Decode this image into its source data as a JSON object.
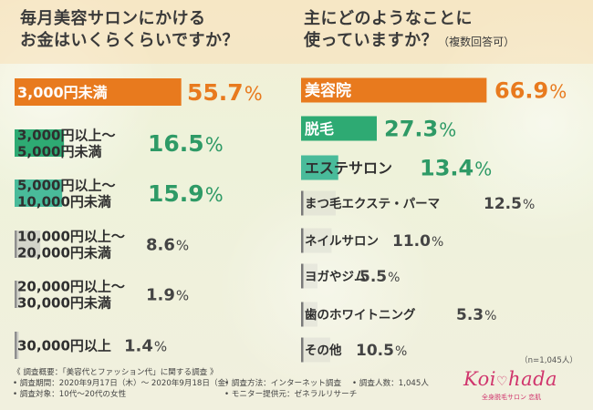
{
  "left_question": {
    "line1": "毎月美容サロンにかける",
    "line2": "お金はいくらくらいですか？"
  },
  "right_question": {
    "line1": "主にどのようなことに",
    "line2": "使っていますか？",
    "note": "（複数回答可）"
  },
  "chart_data": [
    {
      "type": "bar",
      "orientation": "horizontal",
      "title": "毎月美容サロンにかけるお金はいくらくらいですか？",
      "categories": [
        "3,000円未満",
        "3,000円以上～5,000円未満",
        "5,000円以上～10,000円未満",
        "10,000円以上～20,000円未満",
        "20,000円以上～30,000円未満",
        "30,000円以上"
      ],
      "category_lines": [
        [
          "3,000円未満"
        ],
        [
          "3,000円以上～",
          "5,000円未満"
        ],
        [
          "5,000円以上～",
          "10,000円未満"
        ],
        [
          "10,000円以上～",
          "20,000円未満"
        ],
        [
          "20,000円以上～",
          "30,000円未満"
        ],
        [
          "30,000円以上"
        ]
      ],
      "values": [
        55.7,
        16.5,
        15.9,
        8.6,
        1.9,
        1.4
      ],
      "value_labels": [
        [
          "55.",
          "7",
          "%"
        ],
        [
          "16.",
          "5",
          "%"
        ],
        [
          "15.",
          "9",
          "%"
        ],
        [
          "8.",
          "6",
          "%"
        ],
        [
          "1.",
          "9",
          "%"
        ],
        [
          "1.",
          "4",
          "%"
        ]
      ],
      "unit": "%",
      "colors": [
        "#e87a1e",
        "#2eaa73",
        "#49bb9a",
        "#bcbcbc",
        "#bcbcbc",
        "#bcbcbc"
      ],
      "label_colors": [
        "#e87a1e",
        "#2e9a66",
        "#2e9a66",
        "#444444",
        "#444444",
        "#444444"
      ]
    },
    {
      "type": "bar",
      "orientation": "horizontal",
      "title": "主にどのようなことに使っていますか？（複数回答可）",
      "categories": [
        "美容院",
        "脱毛",
        "エステサロン",
        "まつ毛エクステ・パーマ",
        "ネイルサロン",
        "ヨガやジム",
        "歯のホワイトニング",
        "その他"
      ],
      "values": [
        66.9,
        27.3,
        13.4,
        12.5,
        11.0,
        5.5,
        5.3,
        10.5
      ],
      "value_labels": [
        [
          "66.",
          "9",
          "%"
        ],
        [
          "27.",
          "3",
          "%"
        ],
        [
          "13.",
          "4",
          "%"
        ],
        [
          "12.",
          "5",
          "%"
        ],
        [
          "11.",
          "0",
          "%"
        ],
        [
          "5.",
          "5",
          "%"
        ],
        [
          "5.",
          "3",
          "%"
        ],
        [
          "10.",
          "5",
          "%"
        ]
      ],
      "unit": "%",
      "colors": [
        "#e87a1e",
        "#2eaa73",
        "#49bb9a",
        "#bcbcbc",
        "#bcbcbc",
        "#bcbcbc",
        "#bcbcbc",
        "#bcbcbc"
      ],
      "label_colors": [
        "#e87a1e",
        "#2e9a66",
        "#2e9a66",
        "#444444",
        "#444444",
        "#444444",
        "#444444",
        "#444444"
      ]
    }
  ],
  "footnote": {
    "title": "《 調査概要：「美容代とファッション代」に関する調査 》",
    "period": "• 調査期間：2020年9月17日（木）～ 2020年9月18日（金）",
    "method": "• 調査方法：インターネット調査",
    "respondents": "• 調査人数：1,045人",
    "target": "• 調査対象：10代～20代の女性",
    "provider": "• モニター提供元：ゼネラルリサーチ"
  },
  "sample_size": "（n=1,045人）",
  "logo": {
    "left": "Koi",
    "right": "hada",
    "tagline": "全身脱毛サロン 恋肌"
  }
}
